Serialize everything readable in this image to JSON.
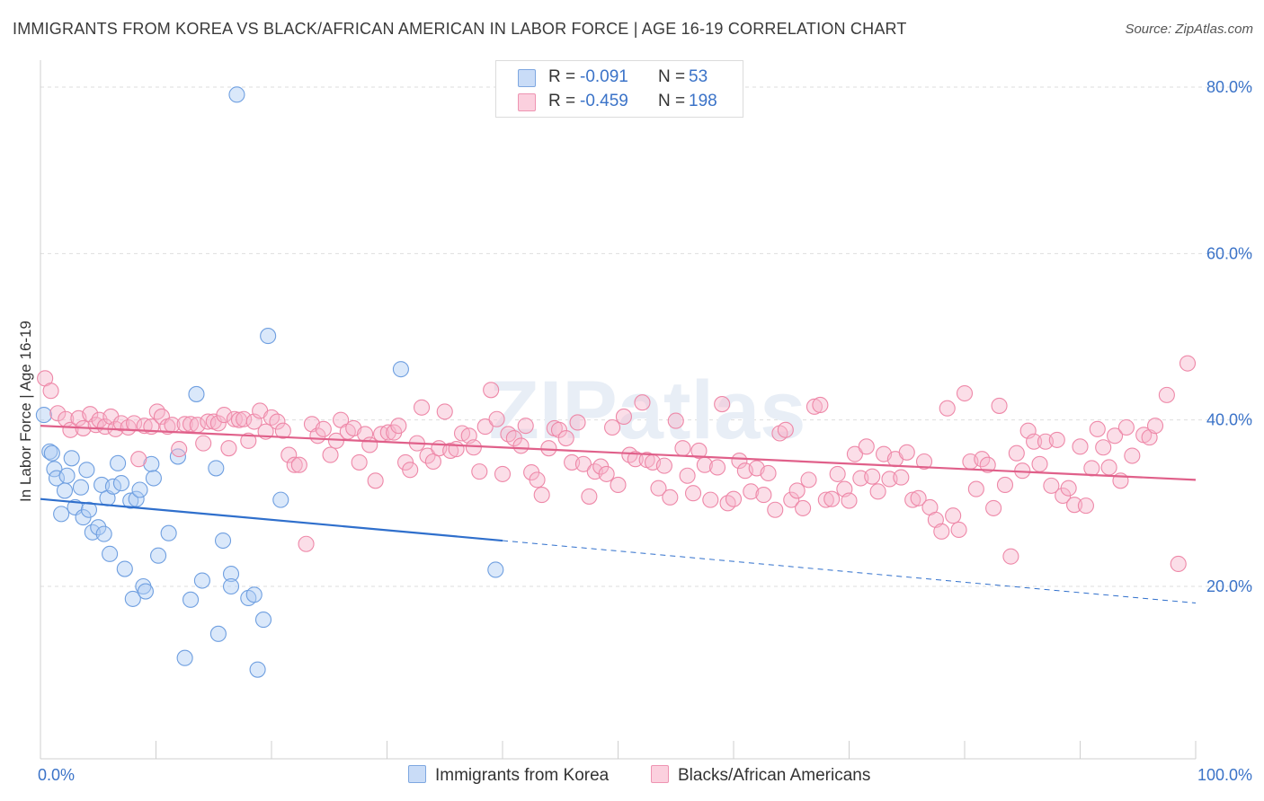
{
  "title": "IMMIGRANTS FROM KOREA VS BLACK/AFRICAN AMERICAN IN LABOR FORCE | AGE 16-19 CORRELATION CHART",
  "source": "Source: ZipAtlas.com",
  "watermark": "ZIPatlas",
  "legend": {
    "rows": [
      {
        "r_label": "R =",
        "r_value": "-0.091",
        "n_label": "N =",
        "n_value": "53",
        "color": "#aecbf3"
      },
      {
        "r_label": "R =",
        "r_value": "-0.459",
        "n_label": "N =",
        "n_value": "198",
        "color": "#f7b6cb"
      }
    ]
  },
  "bottom_legend": [
    {
      "label": "Immigrants from Korea",
      "color": "#aecbf3"
    },
    {
      "label": "Blacks/African Americans",
      "color": "#f7b6cb"
    }
  ],
  "chart_data": {
    "type": "scatter",
    "title": "IMMIGRANTS FROM KOREA VS BLACK/AFRICAN AMERICAN IN LABOR FORCE | AGE 16-19 CORRELATION CHART",
    "xlabel": "",
    "ylabel": "In Labor Force | Age 16-19",
    "xlim": [
      0,
      100
    ],
    "ylim": [
      0,
      82
    ],
    "x_tick_labels": [
      "0.0%",
      "100.0%"
    ],
    "y_ticks": [
      20,
      40,
      60,
      80
    ],
    "y_tick_labels": [
      "20.0%",
      "40.0%",
      "60.0%",
      "80.0%"
    ],
    "grid": true,
    "legend_position": "top-center",
    "series": [
      {
        "name": "Immigrants from Korea",
        "color": "#6f9fe0",
        "fill": "#aecbf3",
        "line_color": "#2f6fcc",
        "trend": {
          "x0": 0,
          "y0": 30.5,
          "x1": 40,
          "y1": 25.5,
          "dash_to_x": 100,
          "dash_to_y": 18.0
        },
        "points": [
          [
            0.3,
            40.6
          ],
          [
            0.8,
            36.2
          ],
          [
            1.0,
            36.0
          ],
          [
            1.2,
            34.1
          ],
          [
            1.4,
            33.0
          ],
          [
            2.1,
            31.5
          ],
          [
            1.8,
            28.7
          ],
          [
            2.3,
            33.3
          ],
          [
            2.7,
            35.4
          ],
          [
            3.0,
            29.5
          ],
          [
            3.5,
            31.9
          ],
          [
            3.7,
            28.3
          ],
          [
            4.0,
            34.0
          ],
          [
            4.2,
            29.2
          ],
          [
            4.5,
            26.5
          ],
          [
            5.0,
            27.1
          ],
          [
            5.3,
            32.2
          ],
          [
            5.5,
            26.3
          ],
          [
            5.8,
            30.6
          ],
          [
            6.0,
            23.9
          ],
          [
            6.3,
            32.0
          ],
          [
            6.7,
            34.8
          ],
          [
            7.0,
            32.4
          ],
          [
            7.3,
            22.1
          ],
          [
            7.8,
            30.3
          ],
          [
            8.0,
            18.5
          ],
          [
            8.3,
            30.5
          ],
          [
            8.6,
            31.6
          ],
          [
            8.9,
            20.0
          ],
          [
            9.1,
            19.4
          ],
          [
            9.6,
            34.7
          ],
          [
            9.8,
            33.0
          ],
          [
            10.2,
            23.7
          ],
          [
            11.1,
            26.4
          ],
          [
            11.9,
            35.6
          ],
          [
            12.5,
            11.4
          ],
          [
            13.0,
            18.4
          ],
          [
            13.5,
            43.1
          ],
          [
            14.0,
            20.7
          ],
          [
            15.4,
            14.3
          ],
          [
            15.2,
            34.2
          ],
          [
            15.8,
            25.5
          ],
          [
            16.5,
            21.5
          ],
          [
            16.5,
            20.0
          ],
          [
            17.0,
            79.1
          ],
          [
            18.0,
            18.6
          ],
          [
            18.5,
            19.0
          ],
          [
            18.8,
            10.0
          ],
          [
            19.3,
            16.0
          ],
          [
            19.7,
            50.1
          ],
          [
            20.8,
            30.4
          ],
          [
            31.2,
            46.1
          ],
          [
            39.4,
            22.0
          ]
        ]
      },
      {
        "name": "Blacks/African Americans",
        "color": "#ee88a8",
        "fill": "#f7b6cb",
        "line_color": "#e0608a",
        "trend": {
          "x0": 0,
          "y0": 39.3,
          "x1": 100,
          "y1": 32.8
        },
        "points": [
          [
            0.4,
            45.0
          ],
          [
            0.9,
            43.5
          ],
          [
            1.5,
            40.8
          ],
          [
            2.2,
            40.1
          ],
          [
            2.6,
            38.8
          ],
          [
            3.3,
            40.2
          ],
          [
            3.7,
            39.0
          ],
          [
            4.3,
            40.7
          ],
          [
            4.8,
            39.4
          ],
          [
            5.1,
            40.0
          ],
          [
            5.6,
            39.2
          ],
          [
            6.1,
            40.4
          ],
          [
            6.5,
            38.9
          ],
          [
            7.0,
            39.6
          ],
          [
            7.6,
            39.1
          ],
          [
            8.1,
            39.6
          ],
          [
            8.5,
            35.3
          ],
          [
            9.0,
            39.3
          ],
          [
            9.6,
            39.2
          ],
          [
            10.1,
            41.0
          ],
          [
            10.5,
            40.4
          ],
          [
            11.0,
            39.2
          ],
          [
            11.4,
            39.4
          ],
          [
            12.0,
            36.5
          ],
          [
            12.5,
            39.5
          ],
          [
            13.0,
            39.5
          ],
          [
            13.6,
            39.4
          ],
          [
            14.1,
            37.2
          ],
          [
            14.5,
            39.8
          ],
          [
            15.0,
            39.8
          ],
          [
            15.4,
            39.6
          ],
          [
            15.9,
            40.6
          ],
          [
            16.3,
            36.6
          ],
          [
            16.8,
            40.1
          ],
          [
            17.2,
            40.0
          ],
          [
            17.6,
            40.1
          ],
          [
            18.0,
            37.5
          ],
          [
            18.5,
            39.8
          ],
          [
            19.0,
            41.1
          ],
          [
            19.5,
            38.6
          ],
          [
            20.0,
            40.3
          ],
          [
            20.5,
            39.8
          ],
          [
            21.0,
            38.7
          ],
          [
            21.5,
            35.8
          ],
          [
            22.0,
            34.6
          ],
          [
            22.4,
            34.6
          ],
          [
            23.0,
            25.1
          ],
          [
            23.5,
            39.5
          ],
          [
            24.0,
            38.1
          ],
          [
            24.5,
            38.9
          ],
          [
            25.1,
            35.8
          ],
          [
            25.6,
            37.5
          ],
          [
            26.0,
            40.0
          ],
          [
            26.6,
            38.6
          ],
          [
            27.1,
            39.0
          ],
          [
            27.6,
            34.9
          ],
          [
            28.1,
            38.3
          ],
          [
            28.5,
            37.0
          ],
          [
            29.0,
            32.7
          ],
          [
            29.5,
            38.3
          ],
          [
            30.1,
            38.5
          ],
          [
            30.6,
            38.5
          ],
          [
            31.0,
            39.3
          ],
          [
            31.6,
            34.9
          ],
          [
            32.0,
            34.0
          ],
          [
            32.6,
            37.2
          ],
          [
            33.0,
            41.5
          ],
          [
            33.5,
            35.7
          ],
          [
            34.0,
            35.0
          ],
          [
            34.5,
            36.6
          ],
          [
            35.0,
            41.0
          ],
          [
            35.5,
            36.3
          ],
          [
            36.0,
            36.5
          ],
          [
            36.5,
            38.4
          ],
          [
            37.1,
            38.1
          ],
          [
            37.5,
            36.7
          ],
          [
            38.0,
            33.8
          ],
          [
            38.5,
            39.2
          ],
          [
            39.0,
            43.6
          ],
          [
            39.5,
            40.1
          ],
          [
            40.0,
            33.5
          ],
          [
            40.5,
            38.3
          ],
          [
            41.0,
            37.8
          ],
          [
            41.6,
            36.9
          ],
          [
            42.0,
            39.3
          ],
          [
            42.5,
            33.7
          ],
          [
            43.0,
            32.8
          ],
          [
            43.4,
            31.0
          ],
          [
            44.0,
            36.6
          ],
          [
            44.5,
            39.0
          ],
          [
            44.9,
            38.8
          ],
          [
            45.5,
            37.8
          ],
          [
            46.0,
            34.9
          ],
          [
            46.5,
            39.7
          ],
          [
            47.0,
            34.7
          ],
          [
            47.5,
            30.8
          ],
          [
            48.0,
            33.8
          ],
          [
            48.5,
            34.4
          ],
          [
            49.0,
            33.5
          ],
          [
            49.5,
            39.1
          ],
          [
            50.0,
            32.2
          ],
          [
            50.5,
            40.4
          ],
          [
            51.0,
            35.8
          ],
          [
            51.5,
            35.3
          ],
          [
            52.1,
            42.1
          ],
          [
            52.5,
            35.2
          ],
          [
            53.0,
            34.9
          ],
          [
            53.5,
            31.8
          ],
          [
            54.0,
            34.5
          ],
          [
            54.5,
            30.7
          ],
          [
            55.0,
            39.9
          ],
          [
            55.6,
            36.6
          ],
          [
            56.0,
            33.3
          ],
          [
            56.5,
            31.2
          ],
          [
            57.0,
            36.3
          ],
          [
            57.5,
            34.6
          ],
          [
            58.0,
            30.4
          ],
          [
            58.6,
            34.3
          ],
          [
            59.0,
            41.9
          ],
          [
            59.5,
            30.0
          ],
          [
            60.0,
            30.5
          ],
          [
            60.5,
            35.1
          ],
          [
            61.0,
            33.9
          ],
          [
            61.5,
            31.4
          ],
          [
            62.0,
            34.2
          ],
          [
            62.6,
            31.0
          ],
          [
            63.0,
            33.6
          ],
          [
            63.6,
            29.2
          ],
          [
            64.0,
            38.4
          ],
          [
            64.5,
            38.8
          ],
          [
            65.0,
            30.4
          ],
          [
            65.5,
            31.5
          ],
          [
            66.0,
            29.4
          ],
          [
            66.5,
            32.8
          ],
          [
            67.0,
            41.6
          ],
          [
            67.5,
            41.8
          ],
          [
            68.0,
            30.4
          ],
          [
            68.5,
            30.5
          ],
          [
            69.0,
            33.5
          ],
          [
            69.6,
            31.7
          ],
          [
            70.0,
            30.3
          ],
          [
            70.5,
            35.9
          ],
          [
            71.0,
            33.0
          ],
          [
            71.5,
            36.8
          ],
          [
            72.0,
            33.2
          ],
          [
            72.5,
            31.4
          ],
          [
            73.0,
            35.9
          ],
          [
            73.5,
            32.9
          ],
          [
            74.0,
            35.3
          ],
          [
            74.5,
            33.1
          ],
          [
            75.0,
            36.1
          ],
          [
            75.5,
            30.4
          ],
          [
            76.0,
            30.6
          ],
          [
            76.5,
            35.0
          ],
          [
            77.0,
            29.5
          ],
          [
            77.5,
            28.0
          ],
          [
            78.0,
            26.6
          ],
          [
            78.5,
            41.4
          ],
          [
            79.0,
            28.5
          ],
          [
            79.5,
            26.8
          ],
          [
            80.0,
            43.2
          ],
          [
            80.5,
            35.0
          ],
          [
            81.0,
            31.7
          ],
          [
            81.5,
            35.3
          ],
          [
            82.0,
            34.6
          ],
          [
            82.5,
            29.4
          ],
          [
            83.0,
            41.7
          ],
          [
            83.5,
            32.2
          ],
          [
            84.0,
            23.6
          ],
          [
            84.5,
            36.0
          ],
          [
            85.0,
            33.9
          ],
          [
            85.5,
            38.7
          ],
          [
            86.0,
            37.4
          ],
          [
            86.5,
            34.7
          ],
          [
            87.0,
            37.4
          ],
          [
            87.5,
            32.1
          ],
          [
            88.0,
            37.6
          ],
          [
            88.5,
            30.9
          ],
          [
            89.0,
            31.8
          ],
          [
            89.5,
            29.8
          ],
          [
            90.0,
            36.8
          ],
          [
            90.5,
            29.7
          ],
          [
            91.0,
            34.2
          ],
          [
            91.5,
            38.9
          ],
          [
            92.0,
            36.7
          ],
          [
            92.5,
            34.3
          ],
          [
            93.0,
            38.1
          ],
          [
            93.5,
            32.7
          ],
          [
            94.0,
            39.1
          ],
          [
            94.5,
            35.7
          ],
          [
            95.5,
            38.2
          ],
          [
            96.0,
            37.9
          ],
          [
            96.5,
            39.3
          ],
          [
            97.5,
            43.0
          ],
          [
            98.5,
            22.7
          ],
          [
            99.3,
            46.8
          ]
        ]
      }
    ]
  }
}
